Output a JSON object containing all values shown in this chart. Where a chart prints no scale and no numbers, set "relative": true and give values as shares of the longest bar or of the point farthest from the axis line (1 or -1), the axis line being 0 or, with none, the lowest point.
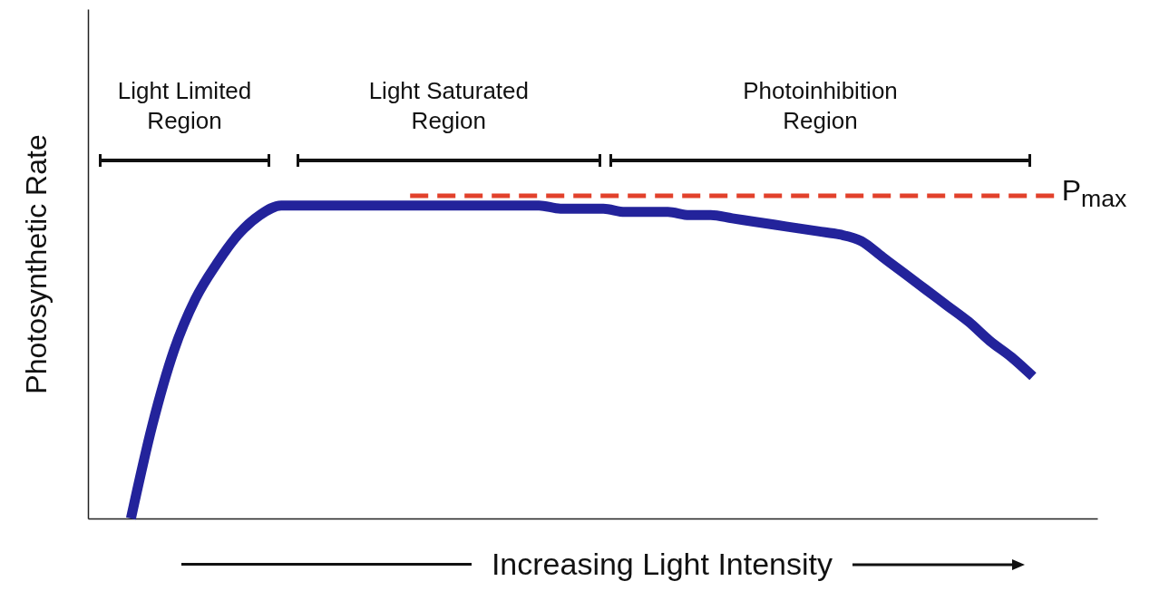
{
  "chart_data": {
    "type": "line",
    "relative": true,
    "tick_labels": false,
    "xlabel": "Increasing Light Intensity",
    "ylabel": "Photosynthetic Rate",
    "categories": [
      null,
      null,
      null,
      null,
      null,
      null,
      null,
      null,
      null,
      null,
      null,
      null,
      null,
      null,
      null,
      null,
      null,
      null,
      null,
      null,
      null,
      null,
      null,
      null,
      null,
      null,
      null,
      null,
      null,
      null,
      null,
      null,
      null,
      null,
      null,
      null,
      null,
      null,
      null,
      null,
      null,
      null,
      null,
      null,
      null,
      null,
      null,
      null
    ],
    "series": [
      {
        "color": "#23239b",
        "values": [
          null,
          null,
          0,
          0.29,
          0.52,
          0.68,
          0.79,
          0.88,
          0.94,
          0.97,
          0.97,
          0.97,
          0.97,
          0.97,
          0.97,
          0.97,
          0.97,
          0.97,
          0.97,
          0.97,
          0.97,
          0.97,
          0.96,
          0.96,
          0.96,
          0.95,
          0.95,
          0.95,
          0.94,
          0.94,
          0.93,
          0.92,
          0.91,
          0.9,
          0.89,
          0.88,
          0.86,
          0.81,
          0.76,
          0.71,
          0.66,
          0.61,
          0.55,
          0.5,
          0.44,
          null,
          null,
          null
        ]
      },
      {
        "name": "P$_{max}$",
        "color": "#e2412b",
        "line_style": "dashed",
        "values": [
          null,
          null,
          null,
          null,
          null,
          null,
          null,
          null,
          null,
          null,
          null,
          null,
          null,
          null,
          null,
          1,
          1,
          1,
          1,
          1,
          1,
          1,
          1,
          1,
          1,
          1,
          1,
          1,
          1,
          1,
          1,
          1,
          1,
          1,
          1,
          1,
          1,
          1,
          1,
          1,
          1,
          1,
          1,
          1,
          1,
          1,
          null,
          null
        ]
      }
    ],
    "annotations": [
      "Light Limited\nRegion",
      "Light Saturated\nRegion",
      "Photoinhibition\nRegion"
    ]
  }
}
